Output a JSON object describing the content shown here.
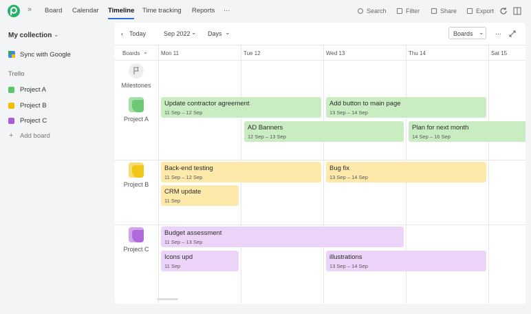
{
  "nav": {
    "tabs": [
      "Board",
      "Calendar",
      "Timeline",
      "Time tracking",
      "Reports",
      "···"
    ],
    "active": 2,
    "actions": [
      "Search",
      "Filter",
      "Share",
      "Export"
    ]
  },
  "sidebar": {
    "collection": "My collection",
    "sync": "Sync with Google",
    "group": "Trello",
    "add": "Add board"
  },
  "toolbar": {
    "today": "Today",
    "month": "Sep 2022",
    "scale": "Days",
    "boards": "Boards",
    "more": "···"
  },
  "timeline": {
    "boards_header": "Boards",
    "days": [
      "Mon 11",
      "Tue 12",
      "Wed 13",
      "Thu 14",
      "Sat 15"
    ],
    "milestones": "Milestones",
    "projects": [
      {
        "name": "Project A",
        "color": "#5cc466",
        "cards": [
          {
            "title": "Update contractor agreement",
            "dates": "11 Sep – 12 Sep"
          },
          {
            "title": "Add button to main page",
            "dates": "13 Sep – 14 Sep"
          },
          {
            "title": "AD Banners",
            "dates": "12 Sep – 13 Sep"
          },
          {
            "title": "Plan for next month",
            "dates": "14 Sep – 16 Sep"
          }
        ]
      },
      {
        "name": "Project B",
        "color": "#f0c000",
        "cards": [
          {
            "title": "Back-end testing",
            "dates": "11 Sep – 12 Sep"
          },
          {
            "title": "Bug fix",
            "dates": "13 Sep – 14 Sep"
          },
          {
            "title": "CRM update",
            "dates": "11 Sep"
          }
        ]
      },
      {
        "name": "Project C",
        "color": "#a95bd8",
        "cards": [
          {
            "title": "Budget assessment",
            "dates": "11 Sep – 13 Sep"
          },
          {
            "title": "Icons upd",
            "dates": "11 Sep"
          },
          {
            "title": "illustrations",
            "dates": "13 Sep – 14 Sep"
          }
        ]
      }
    ]
  }
}
